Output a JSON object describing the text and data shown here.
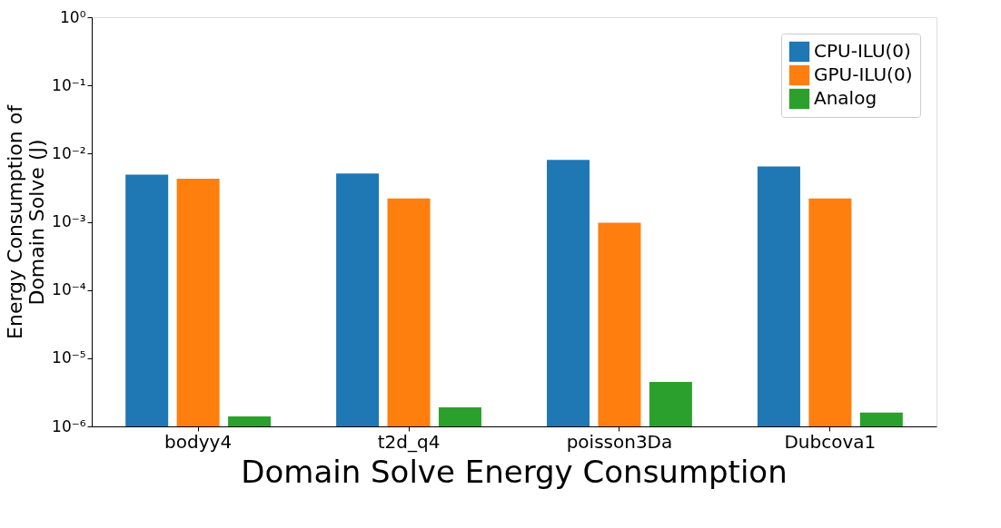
{
  "chart_data": {
    "type": "bar",
    "title": "Domain Solve Energy Consumption",
    "ylabel": "Energy Consumption of\nDomain Solve (J)",
    "categories": [
      "bodyy4",
      "t2d_q4",
      "poisson3Da",
      "Dubcova1"
    ],
    "series": [
      {
        "name": "CPU-ILU(0)",
        "color": "#1f77b4",
        "values": [
          0.0049,
          0.0051,
          0.0081,
          0.0065
        ]
      },
      {
        "name": "GPU-ILU(0)",
        "color": "#ff7f0e",
        "values": [
          0.0043,
          0.0022,
          0.00097,
          0.0022
        ]
      },
      {
        "name": "Analog",
        "color": "#2ca02c",
        "values": [
          1.4e-06,
          1.9e-06,
          4.5e-06,
          1.6e-06
        ]
      }
    ],
    "log": true,
    "ylim": [
      1e-06,
      1
    ],
    "yticks": [
      {
        "value": 1e-06,
        "label": "10⁻⁶"
      },
      {
        "value": 1e-05,
        "label": "10⁻⁵"
      },
      {
        "value": 0.0001,
        "label": "10⁻⁴"
      },
      {
        "value": 0.001,
        "label": "10⁻³"
      },
      {
        "value": 0.01,
        "label": "10⁻²"
      },
      {
        "value": 0.1,
        "label": "10⁻¹"
      },
      {
        "value": 1,
        "label": "10⁰"
      }
    ],
    "legend": "top right",
    "grid": false
  }
}
